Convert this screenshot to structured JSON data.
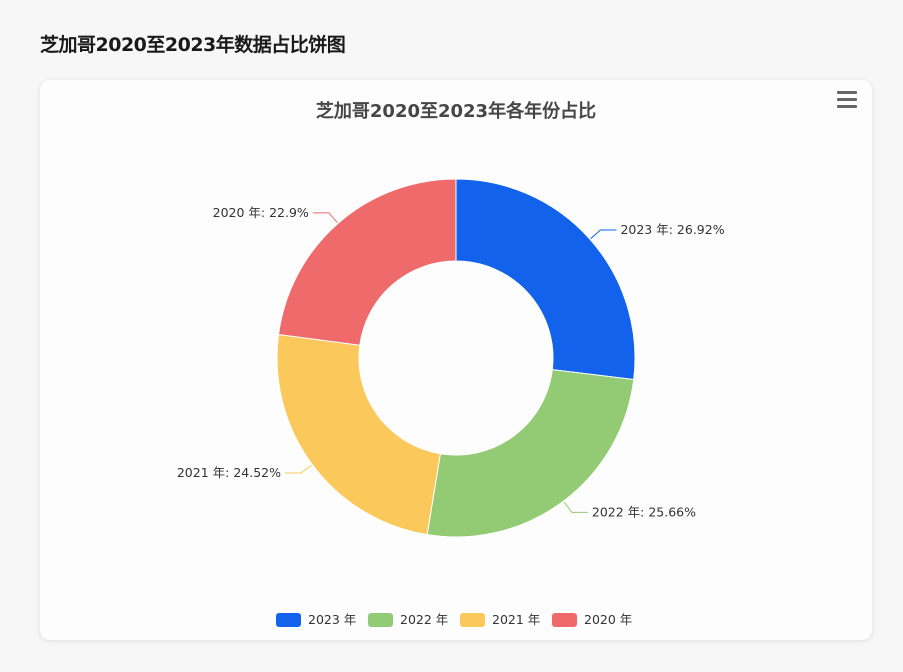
{
  "page": {
    "title": "芝加哥2020至2023年数据占比饼图"
  },
  "toolbar": {
    "menu_icon": "hamburger-menu-icon"
  },
  "chart_data": {
    "type": "pie",
    "style": "donut",
    "title": "芝加哥2020至2023年各年份占比",
    "legend_position": "bottom-center",
    "label_suffix": "年",
    "slices": [
      {
        "name": "2023",
        "value": 26.92,
        "label": "2023 年: 26.92%",
        "color": "#1262ec"
      },
      {
        "name": "2022",
        "value": 25.66,
        "label": "2022 年: 25.66%",
        "color": "#93cb74"
      },
      {
        "name": "2021",
        "value": 24.52,
        "label": "2021 年: 24.52%",
        "color": "#fbc85b"
      },
      {
        "name": "2020",
        "value": 22.9,
        "label": "2020 年: 22.9%",
        "color": "#ef6a6a"
      }
    ],
    "legend": [
      "2023 年",
      "2022 年",
      "2021 年",
      "2020 年"
    ]
  }
}
